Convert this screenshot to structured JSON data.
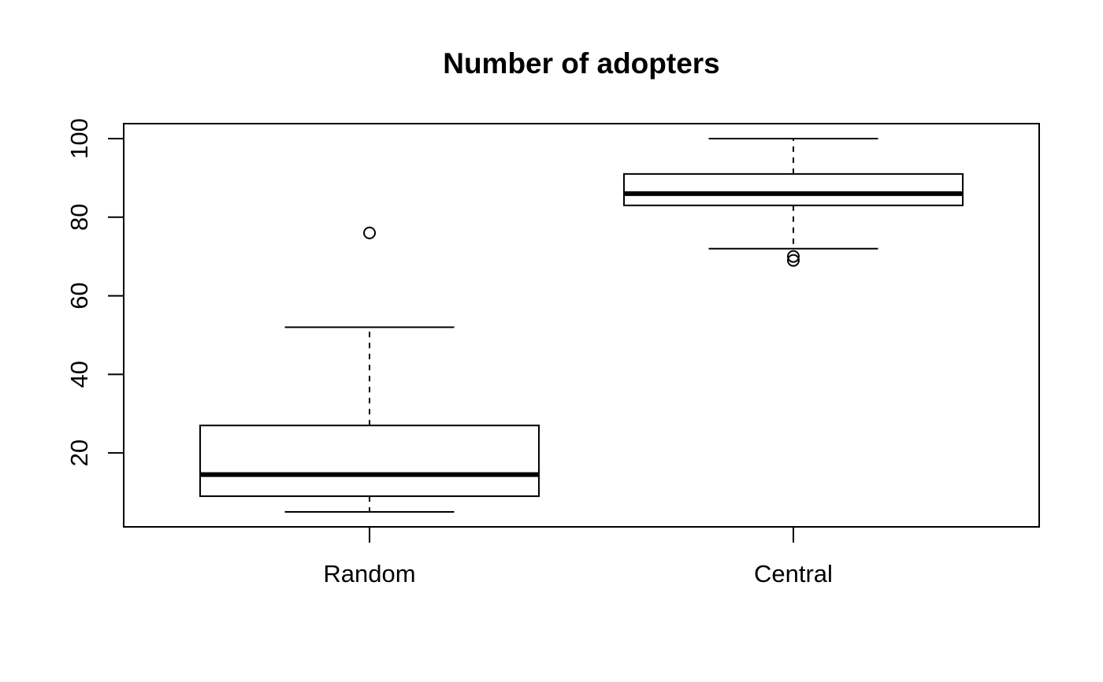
{
  "chart_data": {
    "type": "box",
    "title": "Number of adopters",
    "xlabel": "",
    "ylabel": "",
    "ylim": [
      1.2,
      103.8
    ],
    "yticks": [
      "20",
      "40",
      "60",
      "80",
      "100"
    ],
    "ytick_values": [
      20,
      40,
      60,
      80,
      100
    ],
    "grid": false,
    "categories": [
      "Random",
      "Central"
    ],
    "boxes": [
      {
        "category": "Random",
        "whisker_low": 5,
        "q1": 9,
        "median": 14.5,
        "q3": 27,
        "whisker_high": 52,
        "outliers": [
          76
        ]
      },
      {
        "category": "Central",
        "whisker_low": 72,
        "q1": 83,
        "median": 86,
        "q3": 91,
        "whisker_high": 100,
        "outliers": [
          70,
          69
        ]
      }
    ],
    "colors": {
      "box_fill": "#ffffff",
      "stroke": "#000000"
    }
  }
}
